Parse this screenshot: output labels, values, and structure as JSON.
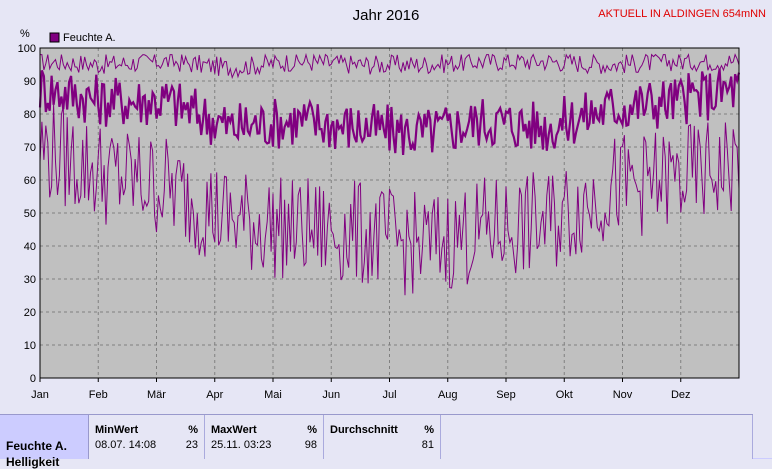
{
  "header": {
    "title": "Jahr 2016",
    "station": "AKTUELL IN ALDINGEN 654mNN"
  },
  "chart_data": {
    "type": "line",
    "ylabel": "%",
    "ylim": [
      0,
      100
    ],
    "yticks": [
      "0",
      "10",
      "20",
      "30",
      "40",
      "50",
      "60",
      "70",
      "80",
      "90",
      "100"
    ],
    "months": [
      "Jan",
      "Feb",
      "Mär",
      "Apr",
      "Mai",
      "Jun",
      "Jul",
      "Aug",
      "Sep",
      "Okt",
      "Nov",
      "Dez"
    ],
    "legend": "Feuchte A.",
    "legend_position": "top-left",
    "grid": true,
    "series": [
      {
        "role": "max",
        "values": [
          96,
          95,
          96,
          94,
          96,
          95,
          95,
          96,
          96,
          95,
          96,
          96
        ]
      },
      {
        "role": "avg",
        "values": [
          88,
          84,
          84,
          76,
          78,
          76,
          74,
          78,
          76,
          82,
          84,
          88
        ]
      },
      {
        "role": "min",
        "values": [
          70,
          62,
          58,
          48,
          45,
          44,
          40,
          45,
          47,
          58,
          60,
          65
        ]
      }
    ]
  },
  "stats": {
    "label": "Feuchte A.",
    "label2": "Helligkeit",
    "min_header": "MinWert",
    "min_unit": "%",
    "min_date": "08.07.  14:08",
    "min_value": "23",
    "max_header": "MaxWert",
    "max_unit": "%",
    "max_date": "25.11.  03:23",
    "max_value": "98",
    "avg_header": "Durchschnitt",
    "avg_unit": "%",
    "avg_value": "81"
  },
  "colors": {
    "series": "#800080",
    "accent": "#e00000",
    "background": "#e6e6f5"
  }
}
